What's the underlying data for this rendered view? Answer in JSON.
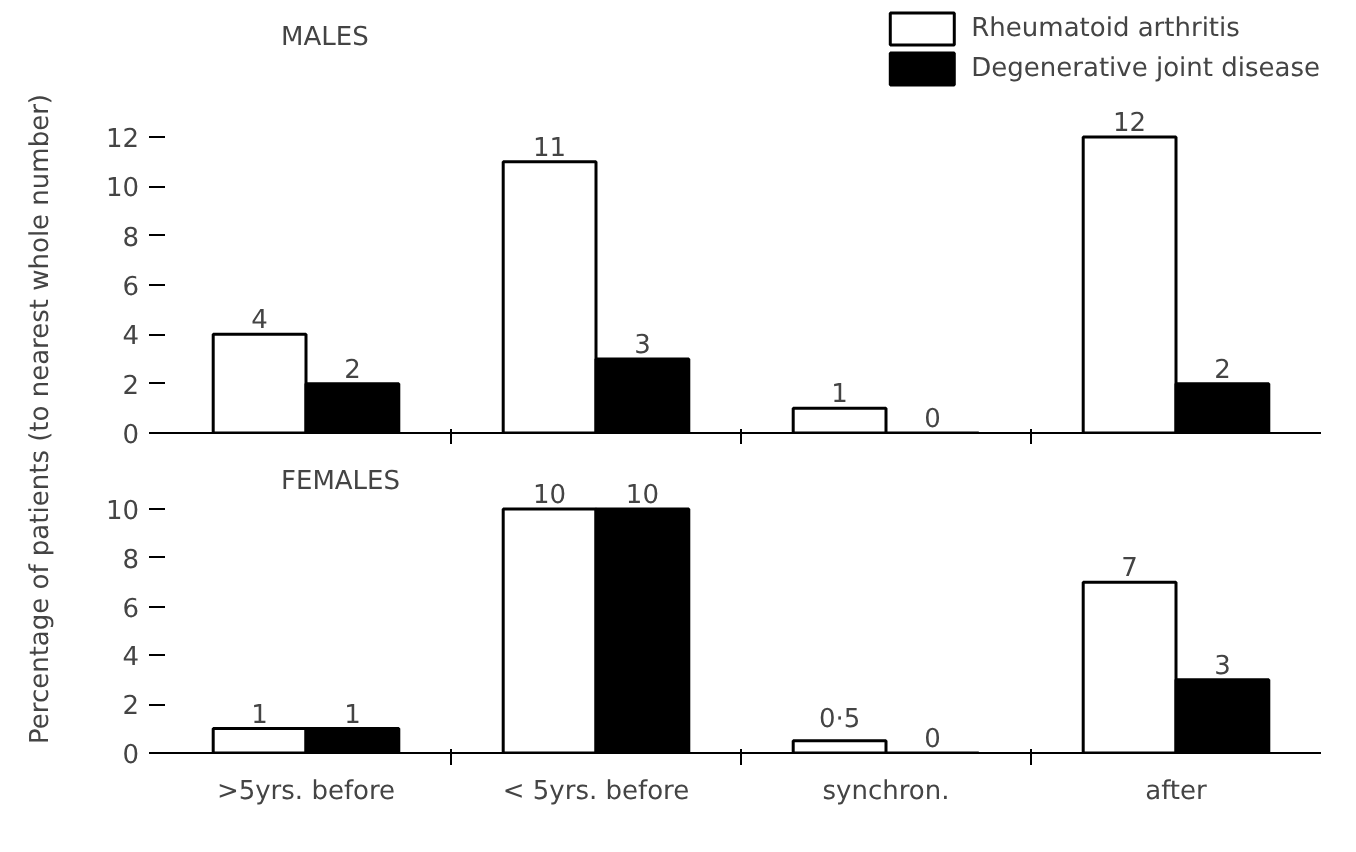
{
  "chart_data": [
    {
      "type": "bar",
      "title": "MALES",
      "ylabel": "Percentage of patients (to nearest whole number)",
      "categories": [
        null,
        null,
        null,
        null
      ],
      "series": [
        {
          "name": "Rheumatoid arthritis",
          "color": "#ffffff",
          "values": [
            4,
            11,
            1,
            12
          ],
          "value_labels": [
            "4",
            "11",
            "1",
            "12"
          ]
        },
        {
          "name": "Degenerative joint disease",
          "color": "#000000",
          "values": [
            2,
            3,
            0,
            2
          ],
          "value_labels": [
            "2",
            "3",
            "0",
            "2"
          ]
        }
      ],
      "ylim": [
        0,
        12
      ],
      "yticks": [
        0,
        2,
        4,
        6,
        8,
        10,
        12
      ],
      "grid": false,
      "legend": "top right",
      "tick_labels": "y"
    },
    {
      "type": "bar",
      "title": "FEMALES",
      "categories": [
        ">5yrs. before",
        "< 5yrs. before",
        "synchron.",
        "after"
      ],
      "series": [
        {
          "color": "#ffffff",
          "values": [
            1,
            10,
            0.5,
            7
          ],
          "value_labels": [
            "1",
            "10",
            "0·5",
            "7"
          ]
        },
        {
          "color": "#000000",
          "values": [
            1,
            10,
            0,
            3
          ],
          "value_labels": [
            "1",
            "10",
            "0",
            "3"
          ]
        }
      ],
      "ylim": [
        0,
        10
      ],
      "yticks": [
        0,
        2,
        4,
        6,
        8,
        10
      ],
      "grid": false
    }
  ]
}
